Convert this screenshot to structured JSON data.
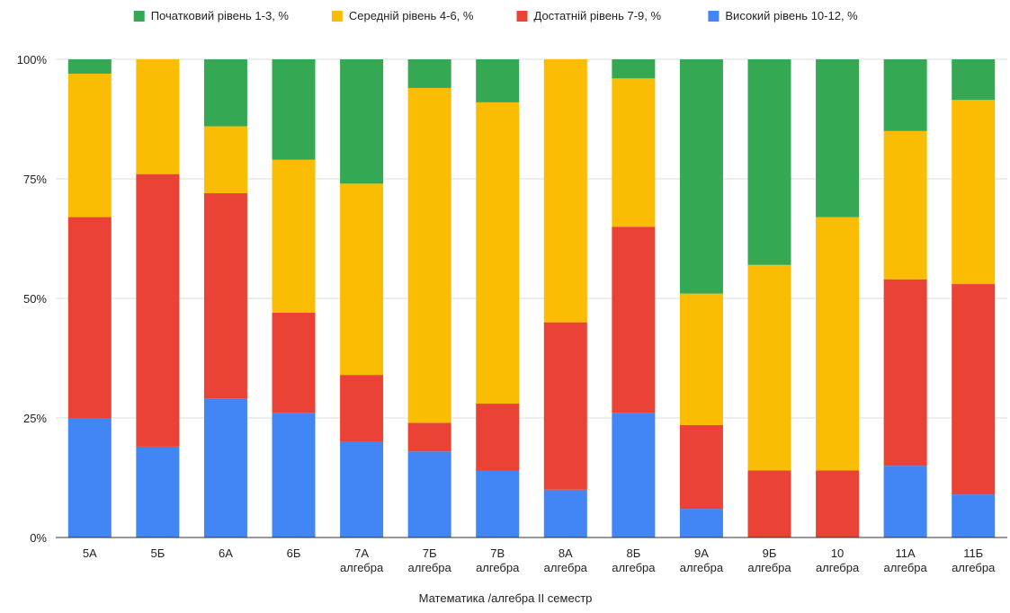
{
  "chart_data": {
    "type": "bar",
    "stacked": true,
    "percent": true,
    "title": "",
    "xlabel": "Математика /алгебра II семестр",
    "ylabel": "",
    "ylim": [
      0,
      100
    ],
    "y_ticks": [
      "0%",
      "25%",
      "50%",
      "75%",
      "100%"
    ],
    "grid": true,
    "legend_position": "top",
    "categories": [
      [
        "5А"
      ],
      [
        "5Б"
      ],
      [
        "6А"
      ],
      [
        "6Б"
      ],
      [
        "7А",
        "алгебра"
      ],
      [
        "7Б",
        "алгебра"
      ],
      [
        "7В",
        "алгебра"
      ],
      [
        "8А",
        "алгебра"
      ],
      [
        "8Б",
        "алгебра"
      ],
      [
        "9А",
        "алгебра"
      ],
      [
        "9Б",
        "алгебра"
      ],
      [
        "10",
        "алгебра"
      ],
      [
        "11А",
        "алгебра"
      ],
      [
        "11Б",
        "алгебра"
      ]
    ],
    "series": [
      {
        "name": "Високий рівень 10-12, %",
        "color": "#4285F4",
        "values": [
          25,
          19,
          29,
          26,
          20,
          18,
          14,
          10,
          26,
          6,
          0,
          0,
          15,
          9
        ]
      },
      {
        "name": "Достатній рівень 7-9, %",
        "color": "#EA4335",
        "values": [
          42,
          57,
          43,
          21,
          14,
          6,
          14,
          35,
          39,
          17.5,
          14,
          14,
          39,
          44
        ]
      },
      {
        "name": "Середній рівень 4-6, %",
        "color": "#FBBC04",
        "values": [
          30,
          24,
          14,
          32,
          40,
          70,
          63,
          55,
          31,
          27.5,
          43,
          53,
          31,
          38.5
        ]
      },
      {
        "name": "Початковий рівень 1-3, %",
        "color": "#34A853",
        "values": [
          3,
          0,
          14,
          21,
          26,
          6,
          9,
          0,
          4,
          49,
          43,
          33,
          15,
          8.5
        ]
      }
    ],
    "legend_order": [
      "Початковий рівень 1-3, %",
      "Середній рівень 4-6, %",
      "Достатній рівень 7-9, %",
      "Високий рівень 10-12, %"
    ]
  }
}
